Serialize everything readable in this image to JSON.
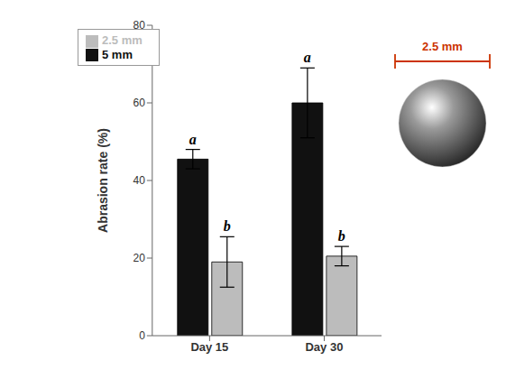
{
  "chart_data": {
    "type": "bar",
    "categories": [
      "Day 15",
      "Day 30"
    ],
    "series": [
      {
        "name": "5 mm",
        "color": "#111111",
        "values": [
          45.5,
          60.0
        ],
        "errors": [
          2.5,
          9.0
        ],
        "annotations": [
          "a",
          "a"
        ]
      },
      {
        "name": "2.5 mm",
        "color": "#bcbcbc",
        "values": [
          19.0,
          20.5
        ],
        "errors": [
          6.5,
          2.5
        ],
        "annotations": [
          "b",
          "b"
        ]
      }
    ],
    "ylabel": "Abrasion rate (%)",
    "ylim": [
      0,
      80
    ],
    "yticks": [
      0,
      20,
      40,
      60,
      80
    ],
    "legend": "upper left",
    "annotation": {
      "text": "2.5 mm",
      "color": "#cc3300"
    }
  }
}
